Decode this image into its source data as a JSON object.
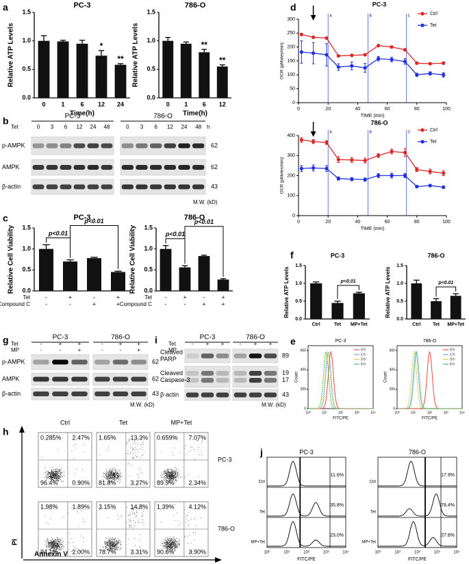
{
  "panel_letters": [
    "a",
    "b",
    "c",
    "d",
    "e",
    "f",
    "g",
    "h",
    "i",
    "j"
  ],
  "chart_data": [
    {
      "type": "bar",
      "title": "PC-3",
      "categories": [
        "0",
        "1",
        "6",
        "12",
        "24"
      ],
      "values": [
        1.0,
        0.99,
        0.95,
        0.74,
        0.58
      ],
      "errors": [
        0.09,
        0.02,
        0.06,
        0.09,
        0.02
      ],
      "significance": [
        null,
        null,
        null,
        "*",
        "**"
      ],
      "ylim": [
        0,
        1.5
      ],
      "yticks": [
        {
          "value": 0,
          "label": "0.0"
        },
        0.5,
        {
          "value": 1,
          "label": "1.0"
        },
        1.5
      ],
      "xlabel": "Time(h)",
      "ylabel": "Relative ATP Levels",
      "color": "#111111"
    },
    {
      "type": "bar",
      "title": "786-O",
      "categories": [
        "0",
        "1",
        "6",
        "12"
      ],
      "values": [
        1.0,
        0.95,
        0.8,
        0.55
      ],
      "errors": [
        0.06,
        0.03,
        0.05,
        0.03
      ],
      "significance": [
        null,
        null,
        "**",
        "**"
      ],
      "ylim": [
        0,
        1.5
      ],
      "yticks": [
        {
          "value": 0,
          "label": "0.0"
        },
        0.5,
        {
          "value": 1,
          "label": "1.0"
        },
        1.5
      ],
      "xlabel": "Time(h)",
      "ylabel": "Relative ATP Levels",
      "color": "#111111"
    },
    {
      "type": "bar",
      "title": "PC-3",
      "values": [
        1.0,
        0.7,
        0.78,
        0.45
      ],
      "errors": [
        0.1,
        0.04,
        0.02,
        0.02
      ],
      "ylim": [
        0,
        1.5
      ],
      "yticks": [
        {
          "value": 0,
          "label": "0.0"
        },
        0.5,
        {
          "value": 1,
          "label": "1.0"
        },
        1.5
      ],
      "ylabel": "Relative Cell Viability",
      "rows": [
        {
          "label": "Tet",
          "marks": [
            "-",
            "+",
            "-",
            "+"
          ]
        },
        {
          "label": "Compound C",
          "marks": [
            "-",
            "-",
            "+",
            "+"
          ]
        }
      ],
      "brackets": [
        "p<0.01",
        "p<0.01"
      ],
      "color": "#111111"
    },
    {
      "type": "bar",
      "title": "786-O",
      "values": [
        1.0,
        0.56,
        0.83,
        0.27
      ],
      "errors": [
        0.08,
        0.04,
        0.02,
        0.02
      ],
      "ylim": [
        0,
        1.5
      ],
      "yticks": [
        {
          "value": 0,
          "label": "0.0"
        },
        0.5,
        {
          "value": 1,
          "label": "1.0"
        },
        1.5
      ],
      "ylabel": "Relative Cell Viability",
      "rows": [
        {
          "label": "Tet",
          "marks": [
            "-",
            "+",
            "-",
            "+"
          ]
        },
        {
          "label": "Compound C",
          "marks": [
            "-",
            "-",
            "+",
            "+"
          ]
        }
      ],
      "brackets": [
        "p<0.01",
        "p<0.01"
      ],
      "color": "#111111"
    },
    {
      "type": "line",
      "title": "PC-3",
      "x": [
        2,
        10,
        19,
        27,
        36,
        45,
        54,
        63,
        72,
        80,
        89,
        98
      ],
      "xlim": [
        0,
        100
      ],
      "xticks": [
        0,
        20,
        40,
        60,
        80,
        100
      ],
      "ylim": [
        0,
        300
      ],
      "yticks": [
        0,
        50,
        100,
        150,
        200,
        250,
        300
      ],
      "xlabel": "TIME (min)",
      "ylabel": "OCR (pMoles/min)",
      "legend": "upper right",
      "arrow_x": 10,
      "injections": [
        {
          "label": "A",
          "x": 20
        },
        {
          "label": "B",
          "x": 47
        },
        {
          "label": "C",
          "x": 73
        }
      ],
      "series": [
        {
          "name": "Ctrl",
          "color": "#e02525",
          "values": [
            245,
            235,
            232,
            168,
            170,
            172,
            205,
            200,
            190,
            142,
            140,
            142
          ],
          "errors": [
            4,
            4,
            4,
            4,
            4,
            4,
            4,
            4,
            4,
            4,
            4,
            4
          ]
        },
        {
          "name": "Tet",
          "color": "#1f2fe0",
          "values": [
            182,
            178,
            172,
            128,
            132,
            125,
            158,
            155,
            148,
            100,
            105,
            100
          ],
          "errors": [
            40,
            38,
            40,
            12,
            14,
            16,
            8,
            8,
            10,
            6,
            6,
            8
          ]
        }
      ]
    },
    {
      "type": "line",
      "title": "786-O",
      "x": [
        2,
        10,
        19,
        27,
        36,
        45,
        54,
        63,
        72,
        80,
        89,
        98
      ],
      "xlim": [
        0,
        100
      ],
      "xticks": [
        0,
        20,
        40,
        60,
        80,
        100
      ],
      "ylim": [
        0,
        400
      ],
      "yticks": [
        0,
        100,
        200,
        300,
        400
      ],
      "xlabel": "TIME (min)",
      "ylabel": "OCR (pMoles/min)",
      "legend": "upper right",
      "arrow_x": 10,
      "injections": [
        {
          "label": "A",
          "x": 20
        },
        {
          "label": "B",
          "x": 47
        },
        {
          "label": "C",
          "x": 73
        }
      ],
      "series": [
        {
          "name": "Ctrl",
          "color": "#e02525",
          "values": [
            378,
            370,
            365,
            280,
            278,
            275,
            300,
            320,
            315,
            230,
            220,
            212
          ],
          "errors": [
            12,
            10,
            10,
            15,
            12,
            12,
            10,
            12,
            20,
            10,
            12,
            12
          ]
        },
        {
          "name": "Tet",
          "color": "#1f2fe0",
          "values": [
            235,
            238,
            235,
            185,
            182,
            180,
            200,
            200,
            200,
            145,
            150,
            142
          ],
          "errors": [
            15,
            15,
            15,
            8,
            8,
            8,
            10,
            12,
            10,
            6,
            6,
            6
          ]
        }
      ]
    },
    {
      "type": "bar",
      "title": "PC-3",
      "categories": [
        "Ctrl",
        "Tet",
        "MP+Tet"
      ],
      "values": [
        1.0,
        0.45,
        0.72
      ],
      "errors": [
        0.04,
        0.05,
        0.03
      ],
      "ylim": [
        0,
        1.5
      ],
      "yticks": [
        {
          "value": 0,
          "label": "0.0"
        },
        0.5,
        {
          "value": 1,
          "label": "1.0"
        },
        1.5
      ],
      "ylabel": "Relative ATP Levels",
      "brackets": [
        "p<0.01"
      ],
      "color": "#111111"
    },
    {
      "type": "bar",
      "title": "786-O",
      "categories": [
        "Ctrl",
        "Tet",
        "MP+Tet"
      ],
      "values": [
        1.0,
        0.5,
        0.65
      ],
      "errors": [
        0.09,
        0.07,
        0.06
      ],
      "ylim": [
        0,
        1.5
      ],
      "yticks": [
        {
          "value": 0,
          "label": "0.0"
        },
        0.5,
        {
          "value": 1,
          "label": "1.0"
        },
        1.5
      ],
      "ylabel": "Relative ATP Levels",
      "brackets": [
        "p<0.01"
      ],
      "color": "#111111"
    }
  ],
  "blot_b": {
    "groups": [
      {
        "name": "PC-3"
      },
      {
        "name": "786-O"
      }
    ],
    "treatments": [
      {
        "label": "Tet",
        "marks": [
          [
            "0",
            "3",
            "6",
            "12",
            "24",
            "48"
          ],
          [
            "0",
            "3",
            "6",
            "12",
            "24",
            "48"
          ]
        ]
      }
    ],
    "unit": "h",
    "rows": [
      {
        "label": [
          "p-AMPK"
        ],
        "mw": [
          "62"
        ]
      },
      {
        "label": [
          "AMPK"
        ],
        "mw": [
          "62"
        ]
      },
      {
        "label": [
          "β-actin"
        ],
        "mw": [
          "43"
        ]
      }
    ],
    "mw_label": "M.W. (kD)"
  },
  "blot_g": {
    "groups": [
      {
        "name": "PC-3"
      },
      {
        "name": "786-O"
      }
    ],
    "treatments": [
      {
        "label": "Tet",
        "marks": [
          [
            "-",
            "+",
            "+"
          ],
          [
            "-",
            "+",
            "+"
          ]
        ]
      },
      {
        "label": "MP",
        "marks": [
          [
            "-",
            "-",
            "+"
          ],
          [
            "-",
            "-",
            "+"
          ]
        ]
      }
    ],
    "rows": [
      {
        "label": [
          "p-AMPK"
        ],
        "mw": [
          "62"
        ]
      },
      {
        "label": [
          "AMPK"
        ],
        "mw": [
          "62"
        ]
      },
      {
        "label": [
          "β-actin"
        ],
        "mw": [
          "43"
        ]
      }
    ],
    "mw_label": "M.W. (kD)"
  },
  "blot_i": {
    "groups": [
      {
        "name": "PC-3"
      },
      {
        "name": "786-O"
      }
    ],
    "treatments": [
      {
        "label": "Tet",
        "marks": [
          [
            "-",
            "+",
            "+"
          ],
          [
            "-",
            "+",
            "+"
          ]
        ]
      },
      {
        "label": "MP",
        "marks": [
          [
            "-",
            "-",
            "+"
          ],
          [
            "-",
            "-",
            "+"
          ]
        ]
      }
    ],
    "rows": [
      {
        "label": [
          "Cleaved",
          "PARP"
        ],
        "mw": [
          "89"
        ]
      },
      {
        "label": [
          "Cleaved",
          "Caspase-3"
        ],
        "mw": [
          "19",
          "17"
        ]
      },
      {
        "label": [
          "β-actin"
        ],
        "mw": [
          "43"
        ]
      }
    ],
    "mw_label": "M.W. (kD)"
  },
  "flow_e": {
    "ylabel": "Count",
    "xlabel": "FITC/PE",
    "ylim": [
      0,
      650
    ],
    "yticks": [
      0,
      200,
      400,
      600
    ],
    "xticks": [
      "10⁰",
      "10¹",
      "10²",
      "10³",
      "10⁴"
    ],
    "charts": [
      {
        "title": "PC-3",
        "legend": [
          {
            "name": "0 h",
            "color": "#e8352e"
          },
          {
            "name": "1 h",
            "color": "#3aa0e0"
          },
          {
            "name": "3 h",
            "color": "#d8b820"
          },
          {
            "name": "6 h",
            "color": "#30b040"
          }
        ]
      },
      {
        "title": "786-O",
        "legend": [
          {
            "name": "0 h",
            "color": "#e8352e"
          },
          {
            "name": "1 h",
            "color": "#3aa0e0"
          },
          {
            "name": "3 h",
            "color": "#d8b820"
          },
          {
            "name": "6 h",
            "color": "#30b040"
          }
        ]
      }
    ]
  },
  "scatter_h": {
    "columns": [
      "Ctrl",
      "Tet",
      "MP+Tet"
    ],
    "ylabel": "PI",
    "xlabel": "Annexin V",
    "rows": [
      {
        "label": "PC-3",
        "quadrants": [
          [
            "0.285%",
            "2.47%",
            "96.4%",
            "0.90%"
          ],
          [
            "1.65%",
            "13.3%",
            "81.8%",
            "3.27%"
          ],
          [
            "0.659%",
            "7.07%",
            "89.9%",
            "2.34%"
          ]
        ]
      },
      {
        "label": "786-O",
        "quadrants": [
          [
            "1.98%",
            "1.89%",
            "94.1%",
            "2.00%"
          ],
          [
            "3.15%",
            "14.8%",
            "78.7%",
            "3.31%"
          ],
          [
            "1.39%",
            "4.12%",
            "90.6%",
            "3.90%"
          ]
        ]
      }
    ]
  },
  "hist_j": {
    "xlabel": "FITC/PE",
    "xticks": [
      "10⁰",
      "10¹",
      "10²",
      "10³",
      "10⁴"
    ],
    "columns": [
      {
        "title": "PC-3",
        "rows": [
          {
            "label": "Ctrl",
            "pct": "11.6%"
          },
          {
            "label": "Tet",
            "pct": "35.8%"
          },
          {
            "label": "MP+Tet",
            "pct": "23.0%"
          }
        ]
      },
      {
        "title": "786-O",
        "rows": [
          {
            "label": "Ctrl",
            "pct": "17.9%"
          },
          {
            "label": "Tet",
            "pct": "78.4%"
          },
          {
            "label": "MP+Tet",
            "pct": "27.8%"
          }
        ]
      }
    ]
  }
}
